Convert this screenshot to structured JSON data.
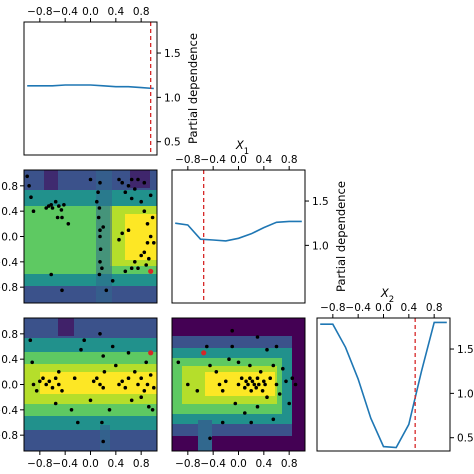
{
  "chart_data": [
    {
      "type": "line",
      "panel": "pd-x0",
      "x": [
        -1.0,
        -0.8,
        -0.6,
        -0.4,
        -0.2,
        0.0,
        0.2,
        0.4,
        0.6,
        0.8,
        1.0
      ],
      "y": [
        1.13,
        1.13,
        1.13,
        1.14,
        1.14,
        1.14,
        1.13,
        1.12,
        1.12,
        1.11,
        1.1
      ],
      "xlim": [
        -1.05,
        1.05
      ],
      "ylim": [
        0.35,
        1.85
      ],
      "xticks": [
        "−0.8",
        "−0.4",
        "0.0",
        "0.4",
        "0.8"
      ],
      "xtick_values": [
        -0.8,
        -0.4,
        0.0,
        0.4,
        0.8
      ],
      "yticks": [
        "0.5",
        "1.0",
        "1.5"
      ],
      "ytick_values": [
        0.5,
        1.0,
        1.5
      ],
      "ylabel": "Partial dependence",
      "minimum_x": 0.95,
      "colors": {
        "line": "#1f77b4",
        "minimum": "#d62728"
      }
    },
    {
      "type": "line",
      "panel": "pd-x1",
      "x": [
        -1.0,
        -0.8,
        -0.6,
        -0.4,
        -0.2,
        0.0,
        0.2,
        0.4,
        0.6,
        0.8,
        1.0
      ],
      "y": [
        1.25,
        1.23,
        1.07,
        1.06,
        1.05,
        1.08,
        1.13,
        1.2,
        1.26,
        1.27,
        1.27
      ],
      "xlim": [
        -1.05,
        1.05
      ],
      "ylim": [
        0.35,
        1.85
      ],
      "title": "X1",
      "xticks": [
        "−0.8",
        "−0.4",
        "0.0",
        "0.4",
        "0.8"
      ],
      "xtick_values": [
        -0.8,
        -0.4,
        0.0,
        0.4,
        0.8
      ],
      "yticks": [
        "1.0",
        "1.5"
      ],
      "ytick_values": [
        1.0,
        1.5
      ],
      "ylabel": "Partial dependence",
      "minimum_x": -0.55,
      "colors": {
        "line": "#1f77b4",
        "minimum": "#d62728"
      }
    },
    {
      "type": "line",
      "panel": "pd-x2",
      "x": [
        -1.0,
        -0.8,
        -0.6,
        -0.4,
        -0.2,
        0.0,
        0.2,
        0.4,
        0.6,
        0.8,
        1.0
      ],
      "y": [
        1.78,
        1.78,
        1.52,
        1.16,
        0.72,
        0.4,
        0.39,
        0.65,
        1.25,
        1.8,
        1.8
      ],
      "xlim": [
        -1.05,
        1.05
      ],
      "ylim": [
        0.35,
        1.85
      ],
      "title": "X2",
      "xticks": [
        "−0.8",
        "−0.4",
        "0.0",
        "0.4",
        "0.8"
      ],
      "xtick_values": [
        -0.8,
        -0.4,
        0.0,
        0.4,
        0.8
      ],
      "yticks": [
        "0.5",
        "1.0",
        "1.5"
      ],
      "ytick_values": [
        0.5,
        1.0,
        1.5
      ],
      "minimum_x": 0.5,
      "colors": {
        "line": "#1f77b4",
        "minimum": "#d62728"
      }
    },
    {
      "type": "heatmap",
      "panel": "contour-x0-x1",
      "xlim": [
        -1.05,
        1.05
      ],
      "ylim": [
        -1.05,
        1.05
      ],
      "yticks": [
        "0.8",
        "0.4",
        "0.0",
        "−0.4",
        "−0.8"
      ],
      "ytick_values": [
        0.8,
        0.4,
        0.0,
        -0.4,
        -0.8
      ],
      "minimum": [
        0.95,
        -0.55
      ],
      "colorscale": [
        "#440154",
        "#3b528b",
        "#21918c",
        "#5ec962",
        "#b5de2b",
        "#fde725"
      ],
      "points": [
        [
          -1.0,
          0.95
        ],
        [
          -0.97,
          0.8
        ],
        [
          -0.94,
          0.62
        ],
        [
          -0.9,
          0.4
        ],
        [
          -0.7,
          0.45
        ],
        [
          -0.66,
          0.48
        ],
        [
          -0.62,
          0.5
        ],
        [
          -0.6,
          0.45
        ],
        [
          -0.55,
          0.55
        ],
        [
          -0.5,
          0.48
        ],
        [
          -0.46,
          0.42
        ],
        [
          -0.42,
          0.5
        ],
        [
          -0.52,
          0.3
        ],
        [
          -0.45,
          0.3
        ],
        [
          -0.62,
          -0.6
        ],
        [
          -0.45,
          -0.85
        ],
        [
          -0.35,
          0.2
        ],
        [
          0.0,
          0.9
        ],
        [
          0.1,
          0.55
        ],
        [
          0.12,
          0.7
        ],
        [
          0.15,
          0.85
        ],
        [
          0.13,
          0.3
        ],
        [
          0.14,
          0.45
        ],
        [
          0.15,
          0.1
        ],
        [
          0.15,
          0.0
        ],
        [
          0.16,
          -0.2
        ],
        [
          0.15,
          -0.4
        ],
        [
          0.14,
          -0.6
        ],
        [
          0.18,
          -0.5
        ],
        [
          0.2,
          0.15
        ],
        [
          0.25,
          -0.85
        ],
        [
          0.35,
          -0.7
        ],
        [
          0.45,
          0.9
        ],
        [
          0.5,
          0.85
        ],
        [
          0.55,
          0.7
        ],
        [
          0.6,
          0.8
        ],
        [
          0.65,
          0.6
        ],
        [
          0.7,
          0.75
        ],
        [
          0.75,
          0.9
        ],
        [
          0.8,
          0.55
        ],
        [
          0.85,
          0.4
        ],
        [
          0.9,
          0.2
        ],
        [
          0.95,
          0.0
        ],
        [
          0.9,
          -0.1
        ],
        [
          0.85,
          -0.25
        ],
        [
          0.8,
          -0.3
        ],
        [
          0.7,
          -0.4
        ],
        [
          0.65,
          -0.5
        ],
        [
          0.55,
          -0.55
        ],
        [
          0.75,
          -0.5
        ],
        [
          0.88,
          -0.45
        ],
        [
          0.92,
          -0.35
        ],
        [
          1.0,
          -0.1
        ],
        [
          0.98,
          0.3
        ],
        [
          0.6,
          0.1
        ],
        [
          0.5,
          0.05
        ],
        [
          0.45,
          -0.05
        ],
        [
          0.95,
          0.65
        ],
        [
          0.65,
          0.9
        ],
        [
          0.85,
          0.85
        ]
      ]
    },
    {
      "type": "heatmap",
      "panel": "contour-x0-x2",
      "xlim": [
        -1.05,
        1.05
      ],
      "ylim": [
        -1.05,
        1.05
      ],
      "xticks": [
        "−0.8",
        "−0.4",
        "0.0",
        "0.4",
        "0.8"
      ],
      "xtick_values": [
        -0.8,
        -0.4,
        0.0,
        0.4,
        0.8
      ],
      "yticks": [
        "0.8",
        "0.4",
        "0.0",
        "−0.4",
        "−0.8"
      ],
      "ytick_values": [
        0.8,
        0.4,
        0.0,
        -0.4,
        -0.8
      ],
      "minimum": [
        0.95,
        0.5
      ],
      "colorscale": [
        "#440154",
        "#3b528b",
        "#21918c",
        "#5ec962",
        "#b5de2b",
        "#fde725"
      ],
      "points": [
        [
          -0.95,
          0.7
        ],
        [
          -0.92,
          0.35
        ],
        [
          -0.9,
          0.0
        ],
        [
          -0.85,
          -0.1
        ],
        [
          -0.8,
          0.05
        ],
        [
          -0.75,
          0.1
        ],
        [
          -0.7,
          0.0
        ],
        [
          -0.65,
          0.05
        ],
        [
          -0.6,
          -0.05
        ],
        [
          -0.55,
          0.1
        ],
        [
          -0.5,
          0.0
        ],
        [
          -0.45,
          -0.1
        ],
        [
          -0.5,
          0.2
        ],
        [
          -0.55,
          -0.3
        ],
        [
          -0.25,
          0.1
        ],
        [
          -0.15,
          0.55
        ],
        [
          -0.1,
          0.7
        ],
        [
          0.0,
          -0.25
        ],
        [
          0.05,
          0.05
        ],
        [
          0.1,
          0.1
        ],
        [
          0.15,
          0.0
        ],
        [
          0.2,
          -0.05
        ],
        [
          0.22,
          0.2
        ],
        [
          0.2,
          0.45
        ],
        [
          0.15,
          0.8
        ],
        [
          0.18,
          -0.6
        ],
        [
          0.2,
          -0.9
        ],
        [
          0.3,
          -0.4
        ],
        [
          0.4,
          0.3
        ],
        [
          0.45,
          0.0
        ],
        [
          0.5,
          0.05
        ],
        [
          0.55,
          -0.05
        ],
        [
          0.6,
          0.1
        ],
        [
          0.6,
          0.5
        ],
        [
          0.65,
          -0.25
        ],
        [
          0.7,
          0.2
        ],
        [
          0.75,
          0.0
        ],
        [
          0.8,
          0.1
        ],
        [
          0.8,
          -0.2
        ],
        [
          0.85,
          -0.1
        ],
        [
          0.88,
          0.35
        ],
        [
          0.9,
          0.0
        ],
        [
          0.92,
          -0.35
        ],
        [
          0.95,
          0.15
        ],
        [
          1.0,
          -0.05
        ],
        [
          0.98,
          -0.4
        ],
        [
          -0.2,
          -0.6
        ],
        [
          -0.3,
          -0.4
        ],
        [
          0.35,
          0.6
        ]
      ]
    },
    {
      "type": "heatmap",
      "panel": "contour-x1-x2",
      "xlim": [
        -1.05,
        1.05
      ],
      "ylim": [
        -1.05,
        1.05
      ],
      "xticks": [
        "−0.8",
        "−0.4",
        "0.0",
        "0.4",
        "0.8"
      ],
      "xtick_values": [
        -0.8,
        -0.4,
        0.0,
        0.4,
        0.8
      ],
      "minimum": [
        -0.55,
        0.5
      ],
      "colorscale": [
        "#440154",
        "#3b528b",
        "#21918c",
        "#5ec962",
        "#b5de2b",
        "#fde725"
      ],
      "points": [
        [
          -0.95,
          0.35
        ],
        [
          -0.8,
          0.0
        ],
        [
          -0.65,
          -0.1
        ],
        [
          -0.5,
          0.6
        ],
        [
          -0.45,
          0.3
        ],
        [
          -0.35,
          0.2
        ],
        [
          -0.3,
          0.0
        ],
        [
          -0.25,
          -0.1
        ],
        [
          -0.2,
          0.05
        ],
        [
          -0.15,
          0.4
        ],
        [
          -0.1,
          0.6
        ],
        [
          -0.05,
          -0.3
        ],
        [
          0.0,
          0.0
        ],
        [
          0.05,
          0.1
        ],
        [
          0.1,
          -0.05
        ],
        [
          0.12,
          0.05
        ],
        [
          0.15,
          0.0
        ],
        [
          0.18,
          0.1
        ],
        [
          0.2,
          -0.1
        ],
        [
          0.22,
          0.05
        ],
        [
          0.25,
          0.0
        ],
        [
          0.28,
          -0.05
        ],
        [
          0.3,
          0.1
        ],
        [
          0.32,
          0.0
        ],
        [
          0.35,
          0.2
        ],
        [
          0.38,
          -0.1
        ],
        [
          0.4,
          0.05
        ],
        [
          0.42,
          0.0
        ],
        [
          0.45,
          -0.2
        ],
        [
          0.5,
          0.1
        ],
        [
          0.55,
          0.3
        ],
        [
          0.6,
          0.0
        ],
        [
          0.65,
          -0.15
        ],
        [
          0.7,
          0.25
        ],
        [
          0.75,
          0.05
        ],
        [
          0.8,
          -0.3
        ],
        [
          0.85,
          0.1
        ],
        [
          0.9,
          0.0
        ],
        [
          0.2,
          -0.6
        ],
        [
          0.1,
          -0.45
        ],
        [
          0.3,
          -0.35
        ],
        [
          0.45,
          0.55
        ],
        [
          0.3,
          0.75
        ],
        [
          -0.1,
          0.85
        ],
        [
          0.6,
          0.6
        ],
        [
          0.55,
          -0.55
        ],
        [
          -0.45,
          -0.85
        ],
        [
          -0.25,
          -0.6
        ],
        [
          0.0,
          0.35
        ],
        [
          0.18,
          0.3
        ]
      ]
    }
  ]
}
